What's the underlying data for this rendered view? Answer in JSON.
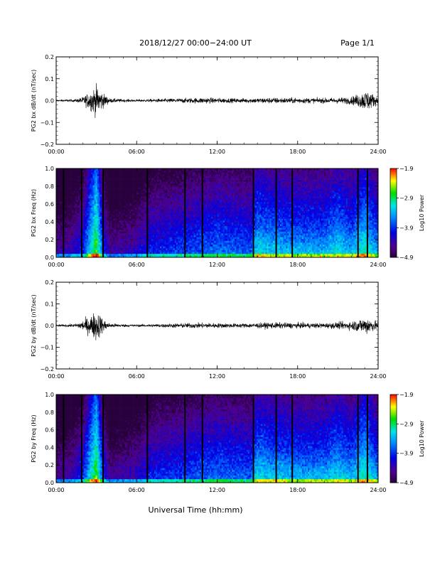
{
  "header": {
    "title": "2018/12/27  00:00−24:00 UT",
    "page": "Page 1/1"
  },
  "xlabel": "Universal Time (hh:mm)",
  "chart_data": [
    {
      "type": "line",
      "ylabel": "PG2 bx dB/dt (nT/sec)",
      "x_ticks": [
        "00:00",
        "06:00",
        "12:00",
        "18:00",
        "24:00"
      ],
      "xlim": [
        0,
        24
      ],
      "ylim": [
        -0.2,
        0.2
      ],
      "y_ticks": [
        "0.2",
        "0.1",
        "0.0",
        "−0.1",
        "−0.2"
      ],
      "series": [
        {
          "x": [
            0,
            1.5,
            2,
            2.5,
            2.8,
            3.0,
            3.2,
            3.5,
            4,
            5,
            6,
            7,
            8,
            9,
            10,
            11,
            12,
            13,
            14,
            15,
            16,
            17,
            18,
            19,
            20,
            21,
            22,
            22.8,
            23.2,
            23.5,
            24
          ],
          "amp": [
            0.004,
            0.008,
            0.02,
            0.05,
            0.07,
            0.08,
            0.07,
            0.04,
            0.012,
            0.008,
            0.006,
            0.008,
            0.01,
            0.012,
            0.014,
            0.016,
            0.014,
            0.012,
            0.012,
            0.014,
            0.016,
            0.015,
            0.015,
            0.014,
            0.014,
            0.016,
            0.02,
            0.045,
            0.06,
            0.04,
            0.02
          ]
        }
      ]
    },
    {
      "type": "heatmap",
      "ylabel": "PG2 bx Freq (Hz)",
      "x_ticks": [
        "00:00",
        "06:00",
        "12:00",
        "18:00",
        "24:00"
      ],
      "xlim": [
        0,
        24
      ],
      "ylim": [
        0,
        1.0
      ],
      "y_ticks": [
        "1.0",
        "0.8",
        "0.6",
        "0.4",
        "0.2",
        "0.0"
      ],
      "colorbar": {
        "label": "Log10 Power",
        "ticks": [
          "−1.9",
          "−2.9",
          "−3.9",
          "−4.9"
        ],
        "range": [
          -4.9,
          -1.9
        ]
      },
      "gap_times": [
        0.55,
        1.9,
        3.5,
        6.8,
        9.6,
        10.9,
        14.7,
        16.4,
        17.6,
        22.5,
        23.2
      ],
      "intensity_profile_x": [
        0,
        1,
        2,
        2.5,
        3,
        3.5,
        4,
        6,
        7,
        9,
        12,
        14.5,
        15,
        16,
        18,
        20,
        21,
        22,
        23,
        24
      ],
      "intensity_profile_v": [
        -4.4,
        -4.3,
        -3.9,
        -3.2,
        -2.6,
        -3.8,
        -4.4,
        -4.2,
        -3.9,
        -3.8,
        -3.6,
        -3.7,
        -3.3,
        -3.4,
        -3.5,
        -3.5,
        -3.3,
        -3.5,
        -3.1,
        -3.6
      ]
    },
    {
      "type": "line",
      "ylabel": "PG2 by dB/dt (nT/sec)",
      "x_ticks": [
        "00:00",
        "06:00",
        "12:00",
        "18:00",
        "24:00"
      ],
      "xlim": [
        0,
        24
      ],
      "ylim": [
        -0.2,
        0.2
      ],
      "y_ticks": [
        "0.2",
        "0.1",
        "0.0",
        "−0.1",
        "−0.2"
      ],
      "series": [
        {
          "x": [
            0,
            1.5,
            2,
            2.5,
            2.8,
            3.0,
            3.2,
            3.5,
            4,
            5,
            6,
            7,
            8,
            9,
            10,
            11,
            12,
            13,
            14,
            15,
            16,
            17,
            18,
            19,
            20,
            21,
            22,
            22.8,
            23.2,
            23.5,
            24
          ],
          "amp": [
            0.004,
            0.01,
            0.03,
            0.05,
            0.07,
            0.09,
            0.07,
            0.035,
            0.012,
            0.008,
            0.006,
            0.008,
            0.01,
            0.012,
            0.014,
            0.015,
            0.013,
            0.012,
            0.012,
            0.014,
            0.017,
            0.016,
            0.015,
            0.014,
            0.014,
            0.018,
            0.024,
            0.04,
            0.05,
            0.035,
            0.02
          ]
        }
      ]
    },
    {
      "type": "heatmap",
      "ylabel": "PG2 by Freq (Hz)",
      "x_ticks": [
        "00:00",
        "06:00",
        "12:00",
        "18:00",
        "24:00"
      ],
      "xlim": [
        0,
        24
      ],
      "ylim": [
        0,
        1.0
      ],
      "y_ticks": [
        "1.0",
        "0.8",
        "0.6",
        "0.4",
        "0.2",
        "0.0"
      ],
      "colorbar": {
        "label": "Log10 Power",
        "ticks": [
          "−1.9",
          "−2.9",
          "−3.9",
          "−4.9"
        ],
        "range": [
          -4.9,
          -1.9
        ]
      },
      "gap_times": [
        0.55,
        1.9,
        3.5,
        6.8,
        9.6,
        10.9,
        14.7,
        16.4,
        17.6,
        22.5,
        23.2
      ],
      "intensity_profile_x": [
        0,
        1,
        2,
        2.5,
        3,
        3.5,
        4,
        6,
        7,
        9,
        12,
        14.5,
        15,
        16,
        18,
        20,
        21,
        22,
        23,
        24
      ],
      "intensity_profile_v": [
        -4.4,
        -4.3,
        -3.9,
        -3.2,
        -2.6,
        -3.8,
        -4.4,
        -4.2,
        -3.9,
        -3.8,
        -3.6,
        -3.7,
        -3.3,
        -3.4,
        -3.5,
        -3.5,
        -3.3,
        -3.5,
        -3.1,
        -3.6
      ]
    }
  ]
}
